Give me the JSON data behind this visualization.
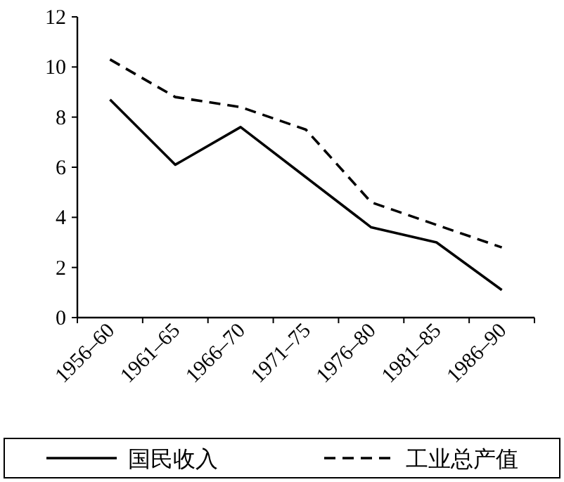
{
  "chart_data": {
    "type": "line",
    "categories": [
      "1956–60",
      "1961–65",
      "1966–70",
      "1971–75",
      "1976–80",
      "1981–85",
      "1986–90"
    ],
    "series": [
      {
        "name": "国民收入",
        "color": "#000000",
        "line_style": "solid",
        "values": [
          8.7,
          6.1,
          7.6,
          5.6,
          3.6,
          3.0,
          1.1
        ]
      },
      {
        "name": "工业总产值",
        "color": "#000000",
        "line_style": "dashed",
        "values": [
          10.3,
          8.8,
          8.4,
          7.5,
          4.6,
          3.7,
          2.8
        ]
      }
    ],
    "ylim": [
      0,
      12
    ],
    "yticks": [
      0,
      2,
      4,
      6,
      8,
      10,
      12
    ],
    "grid": false,
    "legend": "bottom",
    "marker": "none"
  }
}
